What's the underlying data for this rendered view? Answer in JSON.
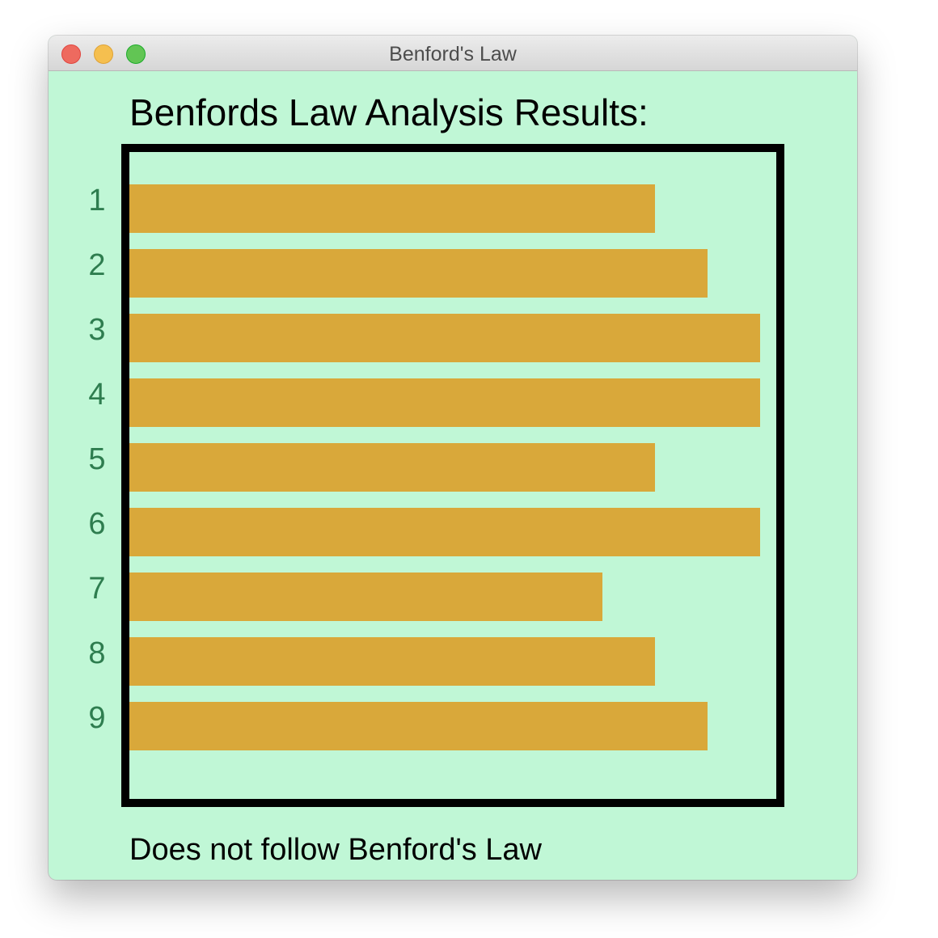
{
  "window": {
    "title": "Benford's Law",
    "buttons": {
      "close_color": "#ee6a5f",
      "minimize_color": "#f5bf4f",
      "zoom_color": "#62c554"
    }
  },
  "heading": "Benfords Law Analysis Results:",
  "verdict": "Does not follow Benford's Law",
  "colors": {
    "background": "#c0f7d6",
    "bar": "#d9a83a",
    "label": "#2e7d4f",
    "frame": "#000000"
  },
  "chart_data": {
    "type": "bar",
    "orientation": "horizontal",
    "categories": [
      "1",
      "2",
      "3",
      "4",
      "5",
      "6",
      "7",
      "8",
      "9"
    ],
    "values": [
      10,
      11,
      12,
      12,
      10,
      12,
      9,
      10,
      11
    ],
    "xlim": [
      0,
      12.3
    ],
    "grid": false,
    "title": "",
    "xlabel": "",
    "ylabel": ""
  }
}
